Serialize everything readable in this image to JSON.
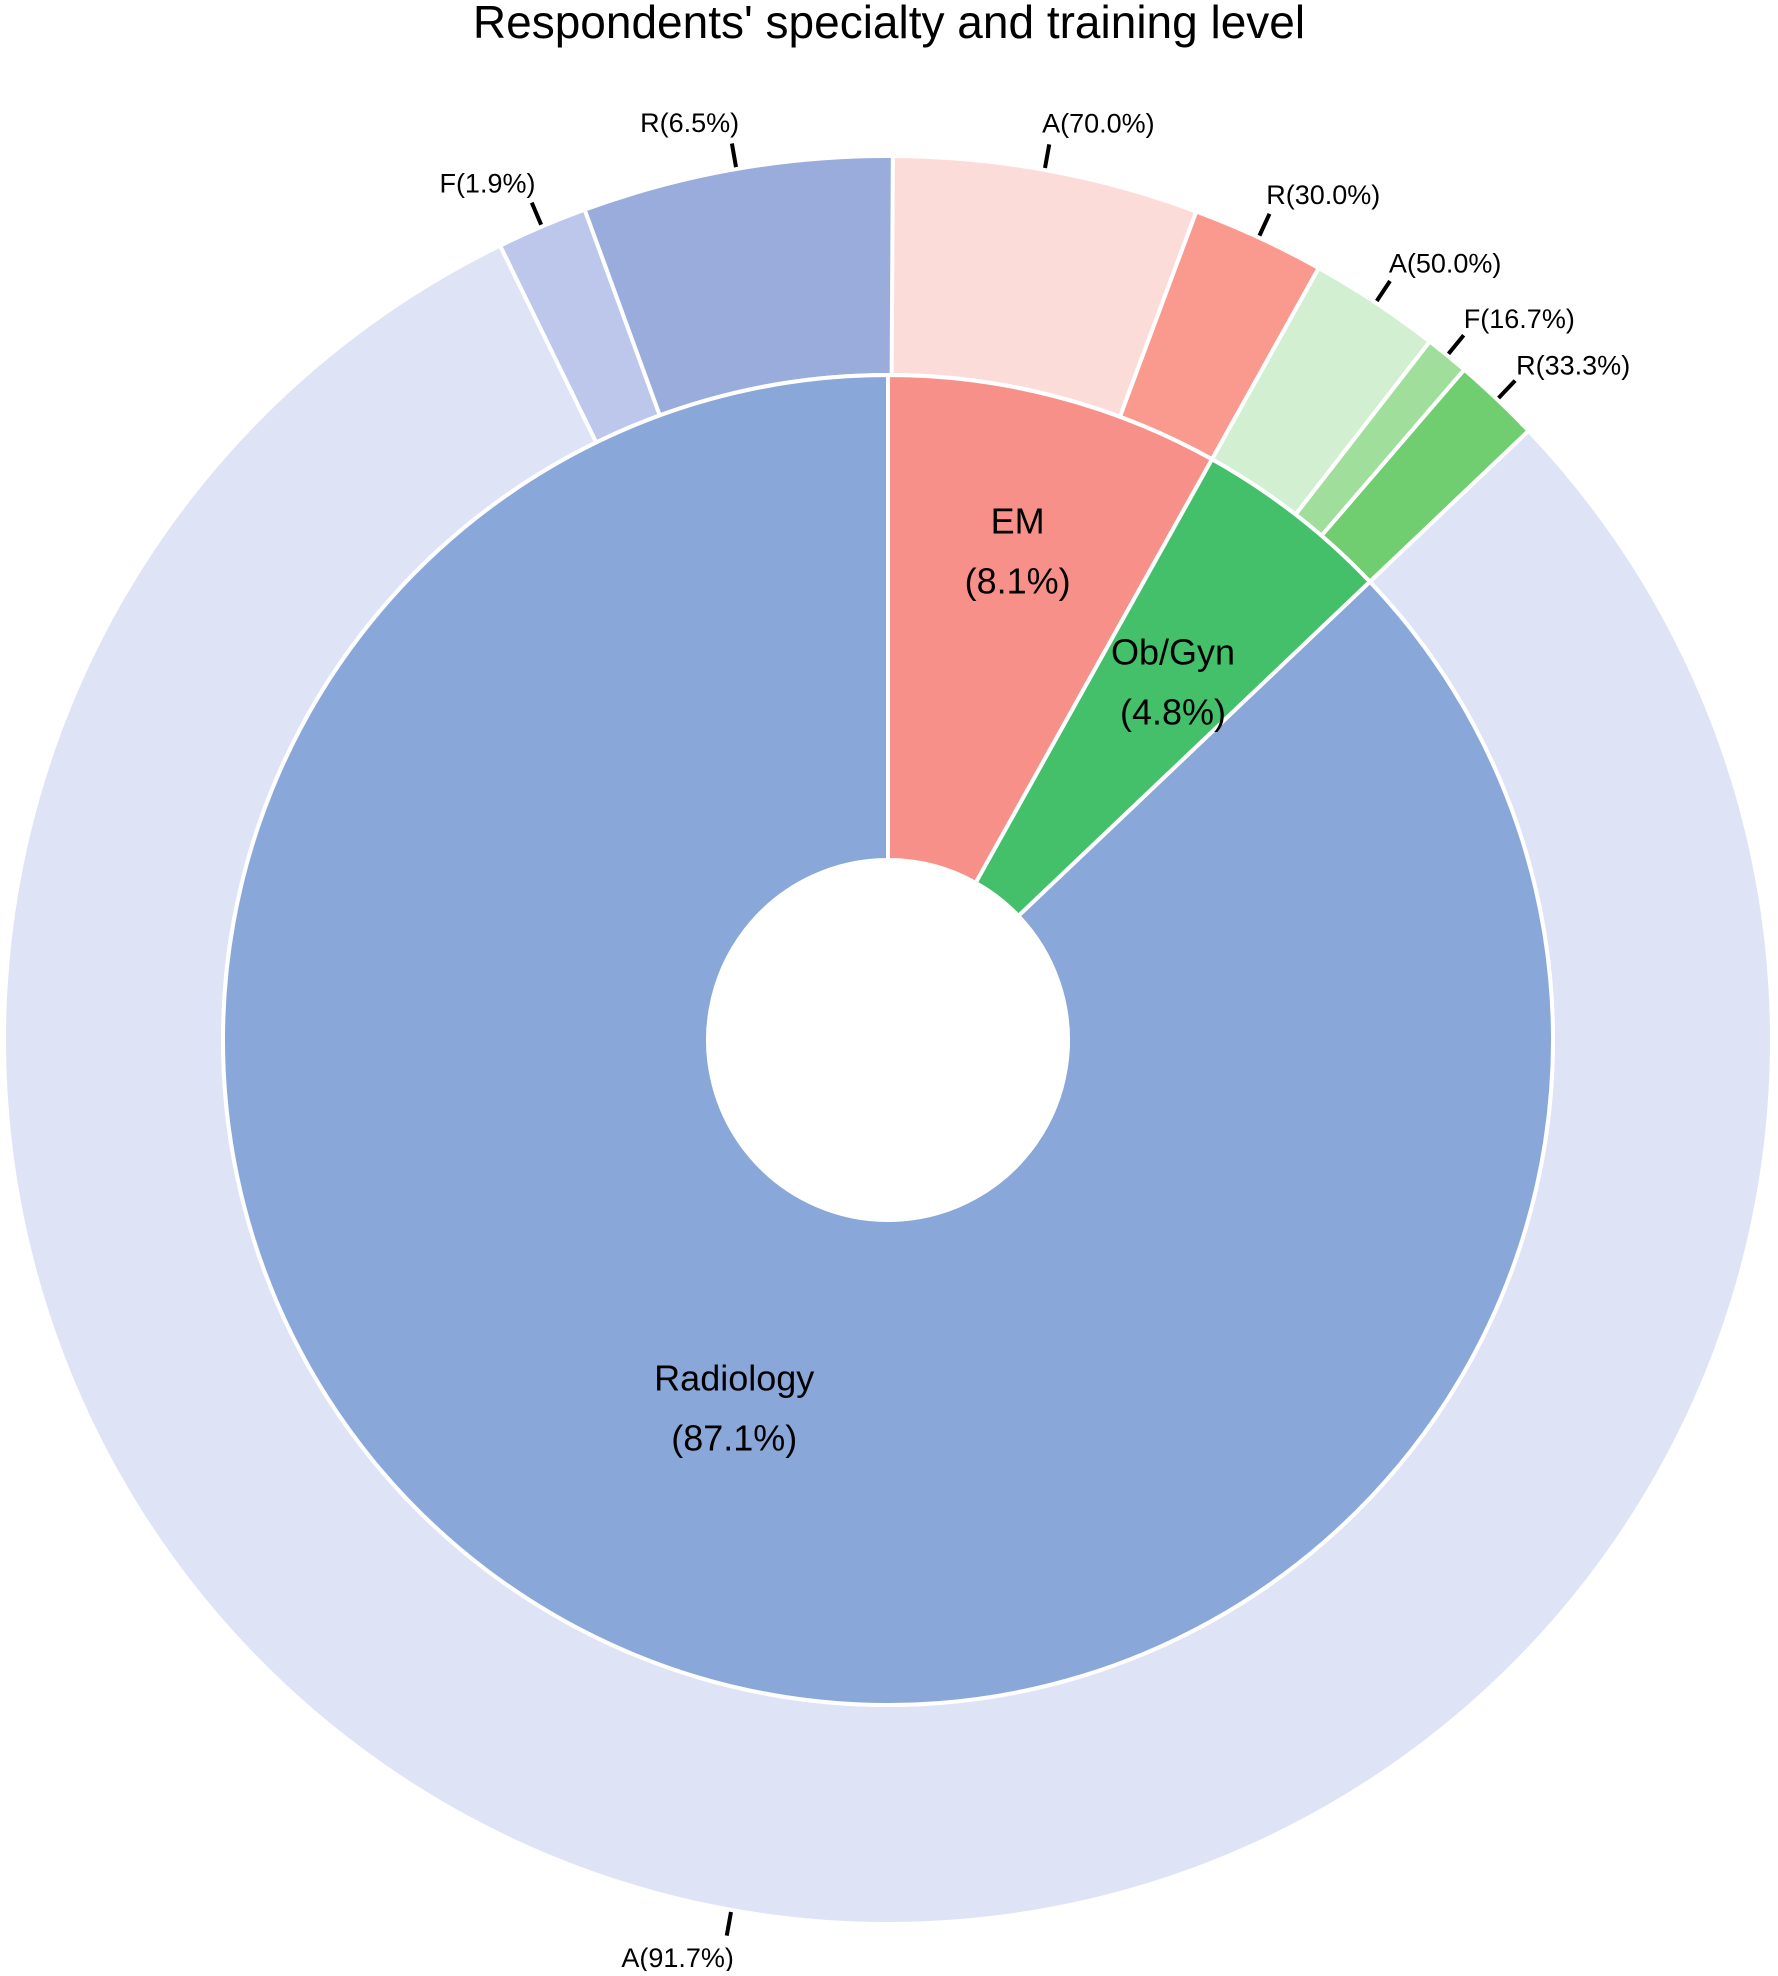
{
  "chart_data": {
    "type": "sunburst",
    "title": "Respondents' specialty and training level",
    "inner_ring": [
      {
        "name": "Radiology",
        "pct_label": "(87.1%)",
        "value": 87.1,
        "color": "#8aa7d9"
      },
      {
        "name": "EM",
        "pct_label": "(8.1%)",
        "value": 8.1,
        "color": "#f79089"
      },
      {
        "name": "Ob/Gyn",
        "pct_label": "(4.8%)",
        "value": 4.8,
        "color": "#44c06a"
      }
    ],
    "outer_ring": [
      {
        "parent": "EM",
        "level": "A",
        "label": "A(70.0%)",
        "value": 70.0,
        "color": "#fcdcd9"
      },
      {
        "parent": "EM",
        "level": "R",
        "label": "R(30.0%)",
        "value": 30.0,
        "color": "#fa9a8f"
      },
      {
        "parent": "Ob/Gyn",
        "level": "A",
        "label": "A(50.0%)",
        "value": 50.0,
        "color": "#d2f0d1"
      },
      {
        "parent": "Ob/Gyn",
        "level": "F",
        "label": "F(16.7%)",
        "value": 16.7,
        "color": "#a0de9c"
      },
      {
        "parent": "Ob/Gyn",
        "level": "R",
        "label": "R(33.3%)",
        "value": 33.3,
        "color": "#70cd70"
      },
      {
        "parent": "Radiology",
        "level": "A",
        "label": "A(91.7%)",
        "value": 91.7,
        "color": "#dfe3f6"
      },
      {
        "parent": "Radiology",
        "level": "F",
        "label": "F(1.9%)",
        "value": 1.9,
        "color": "#bcc7eb"
      },
      {
        "parent": "Radiology",
        "level": "R",
        "label": "R(6.5%)",
        "value": 6.5,
        "color": "#9aacdb"
      }
    ]
  }
}
